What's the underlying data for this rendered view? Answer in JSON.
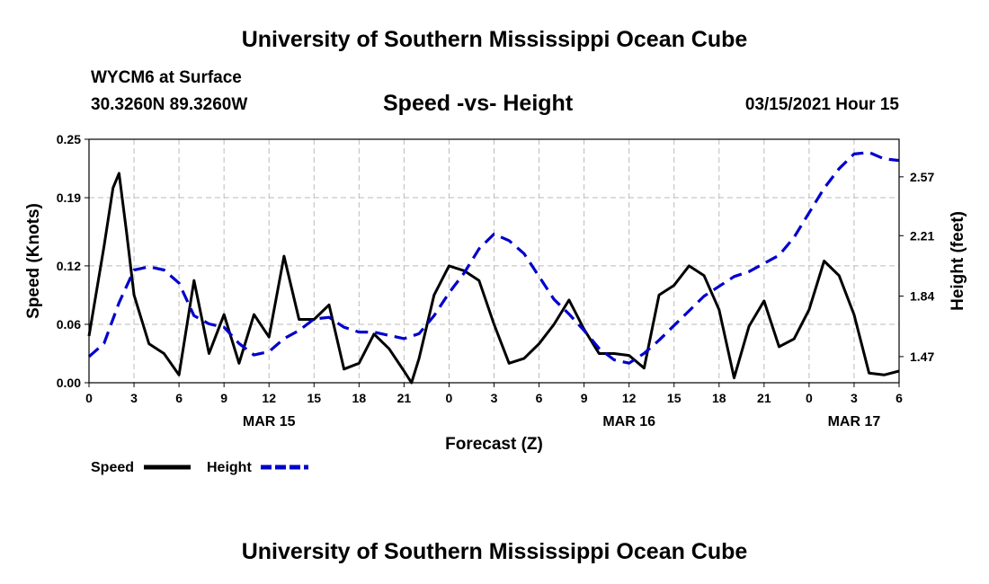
{
  "header": {
    "title": "University of Southern Mississippi Ocean Cube",
    "station": "WYCM6 at Surface",
    "coords": "30.3260N 89.3260W",
    "chart_title": "Speed -vs- Height",
    "run_time": "03/15/2021 Hour 15"
  },
  "footer": {
    "title": "University of Southern Mississippi Ocean Cube"
  },
  "legend": {
    "speed_label": "Speed",
    "height_label": "Height"
  },
  "colors": {
    "speed": "#000000",
    "height": "#0000cc",
    "grid": "#bbbbbb"
  },
  "chart_data": {
    "type": "line",
    "title": "Speed -vs- Height",
    "xlabel": "Forecast (Z)",
    "ylabel": "Speed (Knots)",
    "y2label": "Height (feet)",
    "x_unit": "hours since MAR 15 00Z",
    "xlim": [
      0,
      54
    ],
    "ylim": [
      0,
      0.25
    ],
    "y2lim": [
      1.31,
      2.8
    ],
    "x_ticks": [
      0,
      3,
      6,
      9,
      12,
      15,
      18,
      21,
      24,
      27,
      30,
      33,
      36,
      39,
      42,
      45,
      48,
      51,
      54
    ],
    "x_tick_labels": [
      "0",
      "3",
      "6",
      "9",
      "12",
      "15",
      "18",
      "21",
      "0",
      "3",
      "6",
      "9",
      "12",
      "15",
      "18",
      "21",
      "0",
      "3",
      "6"
    ],
    "x_date_labels": [
      {
        "x": 12,
        "label": "MAR 15"
      },
      {
        "x": 36,
        "label": "MAR 16"
      },
      {
        "x": 51,
        "label": "MAR 17"
      }
    ],
    "y_ticks": [
      0.0,
      0.06,
      0.12,
      0.19,
      0.25
    ],
    "y_tick_labels": [
      "0.00",
      "0.06",
      "0.12",
      "0.19",
      "0.25"
    ],
    "y2_ticks": [
      1.47,
      1.84,
      2.21,
      2.57
    ],
    "y2_tick_labels": [
      "1.47",
      "1.84",
      "2.21",
      "2.57"
    ],
    "grid": true,
    "legend_position": "bottom-left",
    "series": [
      {
        "name": "Speed",
        "axis": "left",
        "style": "solid",
        "x": [
          0,
          1,
          1.6,
          2,
          2.5,
          3,
          4,
          5,
          6,
          7,
          8,
          9,
          10,
          11,
          12,
          13,
          14,
          15,
          16,
          17,
          18,
          19,
          20,
          21,
          21.5,
          22,
          23,
          24,
          25,
          26,
          27,
          28,
          29,
          30,
          31,
          32,
          33,
          34,
          35,
          36,
          37,
          38,
          39,
          40,
          41,
          42,
          43,
          44,
          45,
          46,
          47,
          48,
          49,
          50,
          51,
          52,
          53,
          54
        ],
        "values": [
          0.048,
          0.14,
          0.2,
          0.215,
          0.155,
          0.09,
          0.04,
          0.03,
          0.008,
          0.105,
          0.03,
          0.07,
          0.02,
          0.07,
          0.047,
          0.13,
          0.065,
          0.065,
          0.08,
          0.014,
          0.02,
          0.05,
          0.035,
          0.012,
          0.0,
          0.025,
          0.09,
          0.12,
          0.115,
          0.105,
          0.06,
          0.02,
          0.025,
          0.04,
          0.06,
          0.085,
          0.055,
          0.03,
          0.03,
          0.028,
          0.015,
          0.09,
          0.1,
          0.12,
          0.11,
          0.075,
          0.005,
          0.058,
          0.084,
          0.037,
          0.045,
          0.075,
          0.125,
          0.11,
          0.07,
          0.01,
          0.008,
          0.012
        ]
      },
      {
        "name": "Height",
        "axis": "right",
        "style": "dashed",
        "x": [
          0,
          1,
          2,
          3,
          4,
          5,
          6,
          7,
          8,
          9,
          10,
          11,
          12,
          13,
          14,
          15,
          16,
          17,
          18,
          19,
          20,
          21,
          22,
          23,
          24,
          25,
          26,
          27,
          28,
          29,
          30,
          31,
          32,
          33,
          34,
          35,
          36,
          37,
          38,
          39,
          40,
          41,
          42,
          43,
          44,
          45,
          46,
          47,
          48,
          49,
          50,
          51,
          52,
          53,
          54
        ],
        "values": [
          1.47,
          1.55,
          1.8,
          2.0,
          2.02,
          2.0,
          1.92,
          1.72,
          1.67,
          1.65,
          1.55,
          1.48,
          1.5,
          1.58,
          1.63,
          1.7,
          1.71,
          1.65,
          1.62,
          1.62,
          1.6,
          1.58,
          1.61,
          1.72,
          1.86,
          1.98,
          2.13,
          2.22,
          2.18,
          2.1,
          1.96,
          1.82,
          1.73,
          1.63,
          1.52,
          1.45,
          1.43,
          1.49,
          1.57,
          1.66,
          1.75,
          1.84,
          1.9,
          1.96,
          1.99,
          2.04,
          2.09,
          2.2,
          2.35,
          2.5,
          2.62,
          2.71,
          2.72,
          2.68,
          2.67
        ]
      }
    ]
  }
}
